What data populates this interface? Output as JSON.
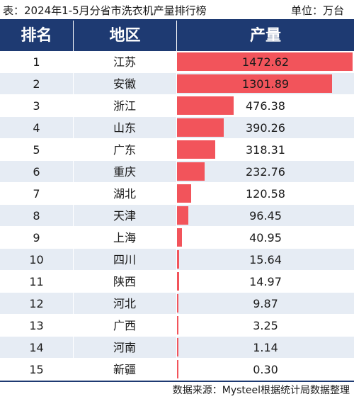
{
  "caption": {
    "title": "表：2024年1-5月分省市洗衣机产量排行榜",
    "unit": "单位：万台"
  },
  "header": {
    "rank": "排名",
    "region": "地区",
    "output": "产量"
  },
  "source": "数据来源：Mysteel根据统计局数据整理",
  "colors": {
    "header_bg": "#1e3a72",
    "bar": "#f2545b",
    "stripe": "#e6ecf4"
  },
  "chart_data": {
    "type": "table",
    "columns": [
      "排名",
      "地区",
      "产量"
    ],
    "rows": [
      {
        "rank": "1",
        "region": "江苏",
        "value": 1472.62,
        "label": "1472.62"
      },
      {
        "rank": "2",
        "region": "安徽",
        "value": 1301.89,
        "label": "1301.89"
      },
      {
        "rank": "3",
        "region": "浙江",
        "value": 476.38,
        "label": "476.38"
      },
      {
        "rank": "4",
        "region": "山东",
        "value": 390.26,
        "label": "390.26"
      },
      {
        "rank": "5",
        "region": "广东",
        "value": 318.31,
        "label": "318.31"
      },
      {
        "rank": "6",
        "region": "重庆",
        "value": 232.76,
        "label": "232.76"
      },
      {
        "rank": "7",
        "region": "湖北",
        "value": 120.58,
        "label": "120.58"
      },
      {
        "rank": "8",
        "region": "天津",
        "value": 96.45,
        "label": "96.45"
      },
      {
        "rank": "9",
        "region": "上海",
        "value": 40.95,
        "label": "40.95"
      },
      {
        "rank": "10",
        "region": "四川",
        "value": 15.64,
        "label": "15.64"
      },
      {
        "rank": "11",
        "region": "陕西",
        "value": 14.97,
        "label": "14.97"
      },
      {
        "rank": "12",
        "region": "河北",
        "value": 9.87,
        "label": "9.87"
      },
      {
        "rank": "13",
        "region": "广西",
        "value": 3.25,
        "label": "3.25"
      },
      {
        "rank": "14",
        "region": "河南",
        "value": 1.14,
        "label": "1.14"
      },
      {
        "rank": "15",
        "region": "新疆",
        "value": 0.3,
        "label": "0.30"
      }
    ]
  }
}
